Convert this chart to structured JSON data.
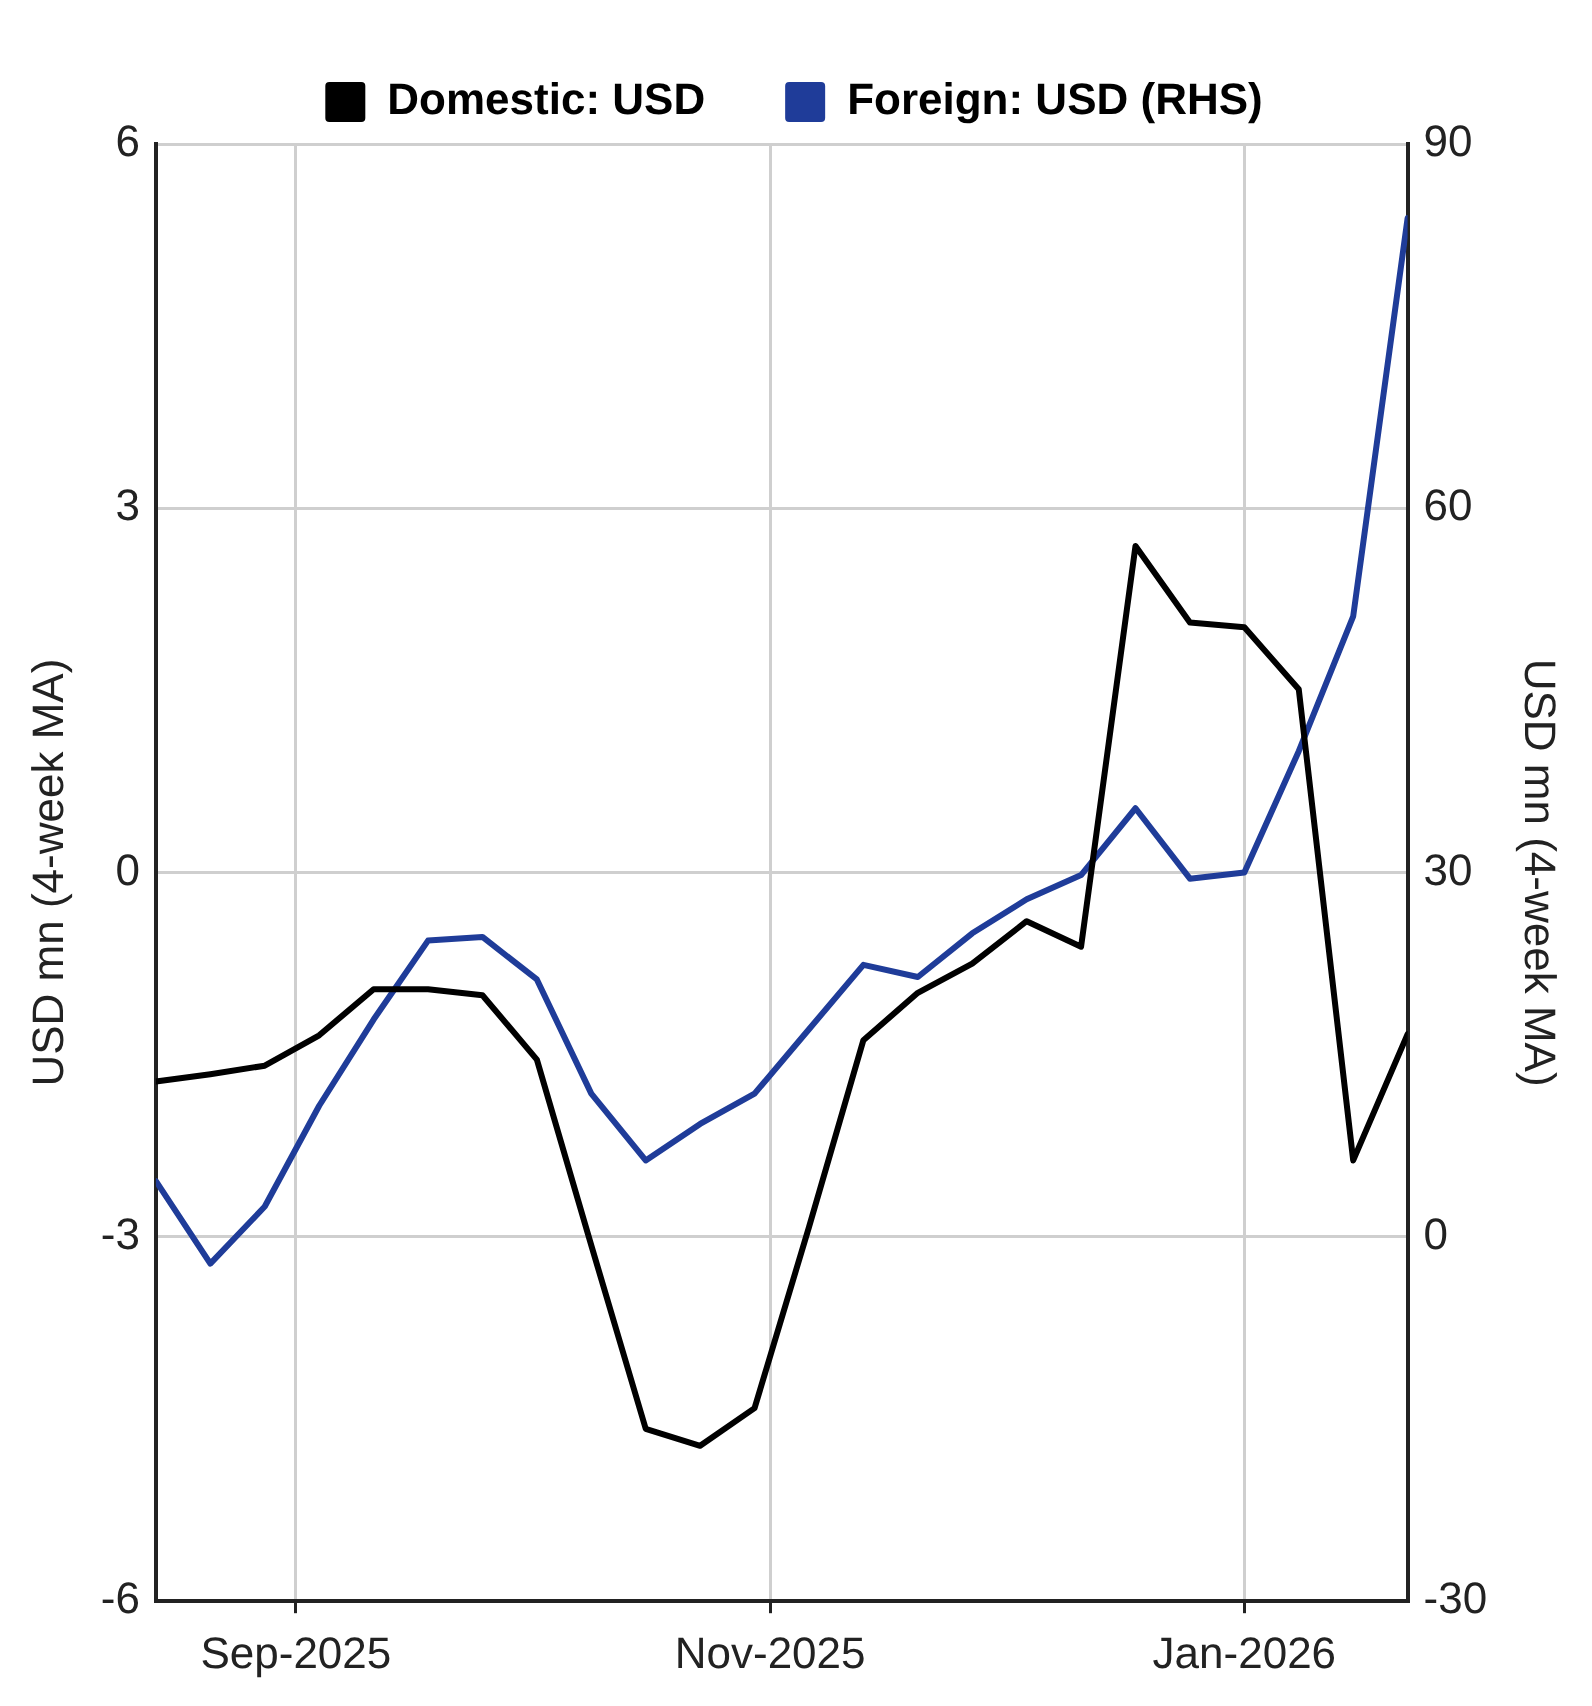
{
  "chart_data": {
    "type": "line",
    "ylabel": "USD mn (4-week MA)",
    "y2label": "USD mn (4-week MA)",
    "x": [
      "2025-08-14",
      "2025-08-21",
      "2025-08-28",
      "2025-09-04",
      "2025-09-11",
      "2025-09-18",
      "2025-09-25",
      "2025-10-02",
      "2025-10-09",
      "2025-10-16",
      "2025-10-23",
      "2025-10-30",
      "2025-11-06",
      "2025-11-13",
      "2025-11-20",
      "2025-11-27",
      "2025-12-04",
      "2025-12-11",
      "2025-12-18",
      "2025-12-25",
      "2026-01-01",
      "2026-01-08",
      "2026-01-15",
      "2026-01-22"
    ],
    "series": [
      {
        "name": "Domestic: USD",
        "color": "#000000",
        "values": [
          -1.72,
          -1.66,
          -1.59,
          -1.34,
          -0.96,
          -0.96,
          -1.01,
          -1.54,
          -3.07,
          -4.58,
          -4.72,
          -4.41,
          -2.92,
          -1.38,
          -0.99,
          -0.75,
          -0.4,
          -0.61,
          2.69,
          2.06,
          2.02,
          1.51,
          -2.37,
          -1.33
        ]
      },
      {
        "name": "Foreign: USD (RHS)",
        "color": "#1f3c99",
        "axis": "y2",
        "values": [
          4.6,
          -2.2,
          2.5,
          10.8,
          17.9,
          24.4,
          24.7,
          21.2,
          11.8,
          6.3,
          9.3,
          11.8,
          17.1,
          22.4,
          21.4,
          25,
          27.8,
          29.8,
          35.3,
          29.5,
          30,
          40,
          51.1,
          83.9
        ]
      }
    ],
    "xlim": [
      "2025-08-14",
      "2026-01-22"
    ],
    "xticks": [
      {
        "value": "2025-09-01",
        "label": "Sep-2025"
      },
      {
        "value": "2025-11-01",
        "label": "Nov-2025"
      },
      {
        "value": "2026-01-01",
        "label": "Jan-2026"
      }
    ],
    "ylim": [
      -6,
      6
    ],
    "yticks": [
      -6,
      -3,
      0,
      3,
      6
    ],
    "y2lim": [
      -30,
      90
    ],
    "y2ticks": [
      -30,
      0,
      30,
      60,
      90
    ],
    "grid": true,
    "legend": "top",
    "marker": "none",
    "line_style": "solid"
  }
}
